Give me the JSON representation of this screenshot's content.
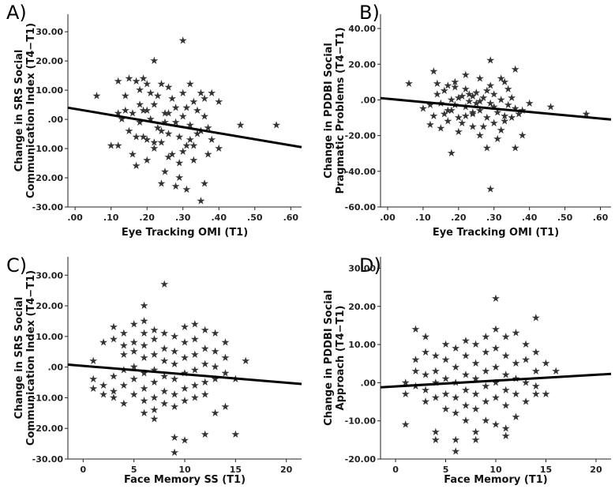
{
  "chart_data": [
    {
      "panel": "A)",
      "type": "scatter",
      "marker": "★",
      "xlabel": "Eye Tracking OMI (T1)",
      "ylabel_lines": [
        "Change in SRS Social",
        "Communication Index (T4−T1)"
      ],
      "xlim": [
        -0.02,
        0.63
      ],
      "ylim": [
        -30,
        36
      ],
      "xticks": [
        0,
        0.1,
        0.2,
        0.3,
        0.4,
        0.5,
        0.6
      ],
      "xtick_labels": [
        ".00",
        ".10",
        ".20",
        ".30",
        ".40",
        ".50",
        ".60"
      ],
      "yticks": [
        -30,
        -20,
        -10,
        0,
        10,
        20,
        30
      ],
      "ytick_labels": [
        "-30.00",
        "-20.00",
        "-10.00",
        ".00",
        "10.00",
        "20.00",
        "30.00"
      ],
      "points": [
        [
          0.06,
          8
        ],
        [
          0.12,
          13
        ],
        [
          0.15,
          14
        ],
        [
          0.17,
          13
        ],
        [
          0.18,
          10
        ],
        [
          0.2,
          12
        ],
        [
          0.22,
          20
        ],
        [
          0.24,
          12
        ],
        [
          0.26,
          11
        ],
        [
          0.3,
          27
        ],
        [
          0.32,
          12
        ],
        [
          0.36,
          7
        ],
        [
          0.38,
          9
        ],
        [
          0.4,
          6
        ],
        [
          0.46,
          -2
        ],
        [
          0.56,
          -2
        ],
        [
          0.1,
          -9
        ],
        [
          0.12,
          -9
        ],
        [
          0.13,
          0
        ],
        [
          0.14,
          3
        ],
        [
          0.15,
          -4
        ],
        [
          0.16,
          2
        ],
        [
          0.17,
          -6
        ],
        [
          0.18,
          -1
        ],
        [
          0.19,
          3
        ],
        [
          0.2,
          -7
        ],
        [
          0.21,
          0
        ],
        [
          0.22,
          5
        ],
        [
          0.23,
          -3
        ],
        [
          0.24,
          -8
        ],
        [
          0.25,
          2
        ],
        [
          0.26,
          -5
        ],
        [
          0.27,
          -12
        ],
        [
          0.28,
          4
        ],
        [
          0.29,
          -6
        ],
        [
          0.3,
          1
        ],
        [
          0.31,
          -9
        ],
        [
          0.32,
          -2
        ],
        [
          0.33,
          -14
        ],
        [
          0.34,
          3
        ],
        [
          0.35,
          -4
        ],
        [
          0.36,
          1
        ],
        [
          0.37,
          -3
        ],
        [
          0.38,
          -7
        ],
        [
          0.4,
          -10
        ],
        [
          0.17,
          -16
        ],
        [
          0.2,
          -14
        ],
        [
          0.25,
          -18
        ],
        [
          0.29,
          -20
        ],
        [
          0.24,
          -22
        ],
        [
          0.28,
          -23
        ],
        [
          0.31,
          -24
        ],
        [
          0.36,
          -22
        ],
        [
          0.35,
          -28
        ],
        [
          0.22,
          -10
        ],
        [
          0.26,
          -13
        ],
        [
          0.3,
          -11
        ],
        [
          0.19,
          -6
        ],
        [
          0.27,
          7
        ],
        [
          0.33,
          6
        ],
        [
          0.14,
          8
        ],
        [
          0.21,
          9
        ],
        [
          0.23,
          8
        ],
        [
          0.18,
          5
        ],
        [
          0.25,
          -1
        ],
        [
          0.32,
          -7
        ],
        [
          0.34,
          -5
        ],
        [
          0.16,
          -12
        ],
        [
          0.2,
          3
        ],
        [
          0.28,
          -1
        ],
        [
          0.3,
          9
        ],
        [
          0.24,
          -4
        ],
        [
          0.22,
          -8
        ],
        [
          0.26,
          2
        ],
        [
          0.31,
          4
        ],
        [
          0.35,
          9
        ],
        [
          0.12,
          2
        ],
        [
          0.19,
          14
        ],
        [
          0.29,
          -15
        ],
        [
          0.33,
          -9
        ],
        [
          0.37,
          -12
        ]
      ],
      "trend": [
        [
          -0.02,
          4
        ],
        [
          0.63,
          -9.5
        ]
      ]
    },
    {
      "panel": "B)",
      "type": "scatter",
      "marker": "★",
      "xlabel": "Eye Tracking OMI (T1)",
      "ylabel_lines": [
        "Change in PDDBI Social",
        "Pragmatic Problems (T4−T1)"
      ],
      "xlim": [
        -0.02,
        0.63
      ],
      "ylim": [
        -60,
        48
      ],
      "xticks": [
        0,
        0.1,
        0.2,
        0.3,
        0.4,
        0.5,
        0.6
      ],
      "xtick_labels": [
        ".00",
        ".10",
        ".20",
        ".30",
        ".40",
        ".50",
        ".60"
      ],
      "yticks": [
        -60,
        -40,
        -20,
        0,
        20,
        40
      ],
      "ytick_labels": [
        "-60.00",
        "-40.00",
        "-20.00",
        ".00",
        "20.00",
        "40.00"
      ],
      "points": [
        [
          0.06,
          9
        ],
        [
          0.13,
          16
        ],
        [
          0.17,
          8
        ],
        [
          0.19,
          10
        ],
        [
          0.22,
          14
        ],
        [
          0.26,
          12
        ],
        [
          0.29,
          22
        ],
        [
          0.33,
          10
        ],
        [
          0.36,
          17
        ],
        [
          0.4,
          -2
        ],
        [
          0.46,
          -4
        ],
        [
          0.56,
          -8
        ],
        [
          0.1,
          -5
        ],
        [
          0.12,
          -14
        ],
        [
          0.13,
          -9
        ],
        [
          0.14,
          3
        ],
        [
          0.15,
          -2
        ],
        [
          0.16,
          5
        ],
        [
          0.17,
          -6
        ],
        [
          0.18,
          0
        ],
        [
          0.19,
          -3
        ],
        [
          0.2,
          -10
        ],
        [
          0.21,
          2
        ],
        [
          0.22,
          -4
        ],
        [
          0.23,
          -1
        ],
        [
          0.24,
          -8
        ],
        [
          0.25,
          4
        ],
        [
          0.26,
          -6
        ],
        [
          0.27,
          1
        ],
        [
          0.28,
          -10
        ],
        [
          0.29,
          -2
        ],
        [
          0.3,
          3
        ],
        [
          0.31,
          -7
        ],
        [
          0.32,
          0
        ],
        [
          0.33,
          -12
        ],
        [
          0.34,
          -3
        ],
        [
          0.35,
          1
        ],
        [
          0.36,
          -5
        ],
        [
          0.37,
          -8
        ],
        [
          0.38,
          -20
        ],
        [
          0.18,
          -30
        ],
        [
          0.24,
          -15
        ],
        [
          0.28,
          -27
        ],
        [
          0.29,
          -50
        ],
        [
          0.36,
          -27
        ],
        [
          0.2,
          -18
        ],
        [
          0.26,
          -20
        ],
        [
          0.31,
          -22
        ],
        [
          0.22,
          6
        ],
        [
          0.24,
          -7
        ],
        [
          0.15,
          -16
        ],
        [
          0.17,
          -12
        ],
        [
          0.27,
          -15
        ],
        [
          0.33,
          -9
        ],
        [
          0.21,
          -13
        ],
        [
          0.25,
          -2
        ],
        [
          0.19,
          7
        ],
        [
          0.23,
          3
        ],
        [
          0.3,
          -4
        ],
        [
          0.34,
          6
        ],
        [
          0.16,
          -8
        ],
        [
          0.32,
          -17
        ],
        [
          0.28,
          5
        ],
        [
          0.2,
          1
        ],
        [
          0.26,
          -1
        ],
        [
          0.35,
          -10
        ],
        [
          0.14,
          9
        ],
        [
          0.18,
          -6
        ],
        [
          0.22,
          -9
        ],
        [
          0.3,
          -13
        ],
        [
          0.38,
          -6
        ],
        [
          0.12,
          -3
        ],
        [
          0.24,
          2
        ],
        [
          0.29,
          8
        ],
        [
          0.32,
          12
        ]
      ],
      "trend": [
        [
          -0.02,
          1
        ],
        [
          0.63,
          -11
        ]
      ]
    },
    {
      "panel": "C)",
      "type": "scatter",
      "marker": "★",
      "xlabel": "Face Memory SS (T1)",
      "ylabel_lines": [
        "Change in SRS Social",
        "Communication Index (T4−T1)"
      ],
      "xlim": [
        -1.5,
        21.5
      ],
      "ylim": [
        -30,
        36
      ],
      "xticks": [
        0,
        5,
        10,
        15,
        20
      ],
      "xtick_labels": [
        "0",
        "5",
        "10",
        "15",
        "20"
      ],
      "yticks": [
        -30,
        -20,
        -10,
        0,
        10,
        20,
        30
      ],
      "ytick_labels": [
        "-30.00",
        "-20.00",
        "-10.00",
        ".00",
        "10.00",
        "20.00",
        "30.00"
      ],
      "points": [
        [
          1,
          2
        ],
        [
          1,
          -4
        ],
        [
          1,
          -7
        ],
        [
          2,
          8
        ],
        [
          2,
          -6
        ],
        [
          2,
          -9
        ],
        [
          3,
          13
        ],
        [
          3,
          9
        ],
        [
          3,
          -3
        ],
        [
          3,
          -8
        ],
        [
          3,
          -10
        ],
        [
          4,
          11
        ],
        [
          4,
          7
        ],
        [
          4,
          4
        ],
        [
          4,
          -1
        ],
        [
          4,
          -6
        ],
        [
          4,
          -12
        ],
        [
          5,
          14
        ],
        [
          5,
          8
        ],
        [
          5,
          5
        ],
        [
          5,
          0
        ],
        [
          5,
          -4
        ],
        [
          5,
          -9
        ],
        [
          6,
          20
        ],
        [
          6,
          15
        ],
        [
          6,
          11
        ],
        [
          6,
          7
        ],
        [
          6,
          3
        ],
        [
          6,
          -2
        ],
        [
          6,
          -7
        ],
        [
          6,
          -11
        ],
        [
          6,
          -15
        ],
        [
          7,
          12
        ],
        [
          7,
          9
        ],
        [
          7,
          4
        ],
        [
          7,
          -1
        ],
        [
          7,
          -5
        ],
        [
          7,
          -10
        ],
        [
          7,
          -14
        ],
        [
          7,
          -17
        ],
        [
          8,
          27
        ],
        [
          8,
          11
        ],
        [
          8,
          6
        ],
        [
          8,
          2
        ],
        [
          8,
          -3
        ],
        [
          8,
          -8
        ],
        [
          8,
          -12
        ],
        [
          9,
          10
        ],
        [
          9,
          5
        ],
        [
          9,
          1
        ],
        [
          9,
          -4
        ],
        [
          9,
          -9
        ],
        [
          9,
          -13
        ],
        [
          9,
          -23
        ],
        [
          9,
          -28
        ],
        [
          10,
          13
        ],
        [
          10,
          8
        ],
        [
          10,
          3
        ],
        [
          10,
          -2
        ],
        [
          10,
          -7
        ],
        [
          10,
          -11
        ],
        [
          10,
          -24
        ],
        [
          11,
          14
        ],
        [
          11,
          9
        ],
        [
          11,
          4
        ],
        [
          11,
          -1
        ],
        [
          11,
          -6
        ],
        [
          11,
          -10
        ],
        [
          12,
          12
        ],
        [
          12,
          6
        ],
        [
          12,
          1
        ],
        [
          12,
          -5
        ],
        [
          12,
          -9
        ],
        [
          12,
          -22
        ],
        [
          13,
          11
        ],
        [
          13,
          5
        ],
        [
          13,
          0
        ],
        [
          13,
          -4
        ],
        [
          13,
          -15
        ],
        [
          14,
          8
        ],
        [
          14,
          3
        ],
        [
          14,
          -2
        ],
        [
          14,
          -13
        ],
        [
          15,
          -4
        ],
        [
          15,
          -22
        ],
        [
          16,
          2
        ]
      ],
      "trend": [
        [
          -1.5,
          0.8
        ],
        [
          21.5,
          -5.5
        ]
      ]
    },
    {
      "panel": "D)",
      "type": "scatter",
      "marker": "★",
      "xlabel": "Face Memory (T1)",
      "ylabel_lines": [
        "Change in PDDBI Social",
        "Approach (T4−T1)"
      ],
      "xlim": [
        -1.5,
        21.5
      ],
      "ylim": [
        -20,
        33
      ],
      "xticks": [
        0,
        5,
        10,
        15,
        20
      ],
      "xtick_labels": [
        "0",
        "5",
        "10",
        "15",
        "20"
      ],
      "yticks": [
        -20,
        -10,
        0,
        10,
        20,
        30
      ],
      "ytick_labels": [
        "-20.00",
        "-10.00",
        ".00",
        "10.00",
        "20.00",
        "30.00"
      ],
      "points": [
        [
          1,
          0
        ],
        [
          1,
          -3
        ],
        [
          1,
          -11
        ],
        [
          2,
          14
        ],
        [
          2,
          6
        ],
        [
          2,
          3
        ],
        [
          2,
          -1
        ],
        [
          3,
          12
        ],
        [
          3,
          8
        ],
        [
          3,
          2
        ],
        [
          3,
          -2
        ],
        [
          3,
          -5
        ],
        [
          4,
          7
        ],
        [
          4,
          3
        ],
        [
          4,
          0
        ],
        [
          4,
          -4
        ],
        [
          4,
          -13
        ],
        [
          4,
          -15
        ],
        [
          5,
          10
        ],
        [
          5,
          6
        ],
        [
          5,
          1
        ],
        [
          5,
          -3
        ],
        [
          5,
          -7
        ],
        [
          6,
          9
        ],
        [
          6,
          4
        ],
        [
          6,
          0
        ],
        [
          6,
          -4
        ],
        [
          6,
          -8
        ],
        [
          6,
          -15
        ],
        [
          6,
          -18
        ],
        [
          7,
          11
        ],
        [
          7,
          7
        ],
        [
          7,
          2
        ],
        [
          7,
          -2
        ],
        [
          7,
          -6
        ],
        [
          7,
          -10
        ],
        [
          8,
          10
        ],
        [
          8,
          5
        ],
        [
          8,
          1
        ],
        [
          8,
          -3
        ],
        [
          8,
          -7
        ],
        [
          8,
          -13
        ],
        [
          8,
          -15
        ],
        [
          9,
          12
        ],
        [
          9,
          8
        ],
        [
          9,
          3
        ],
        [
          9,
          -1
        ],
        [
          9,
          -5
        ],
        [
          9,
          -10
        ],
        [
          10,
          22
        ],
        [
          10,
          14
        ],
        [
          10,
          9
        ],
        [
          10,
          4
        ],
        [
          10,
          0
        ],
        [
          10,
          -4
        ],
        [
          10,
          -11
        ],
        [
          11,
          12
        ],
        [
          11,
          7
        ],
        [
          11,
          2
        ],
        [
          11,
          -2
        ],
        [
          11,
          -6
        ],
        [
          11,
          -12
        ],
        [
          11,
          -14
        ],
        [
          12,
          13
        ],
        [
          12,
          5
        ],
        [
          12,
          1
        ],
        [
          12,
          -3
        ],
        [
          12,
          -9
        ],
        [
          13,
          10
        ],
        [
          13,
          6
        ],
        [
          13,
          0
        ],
        [
          13,
          -5
        ],
        [
          14,
          17
        ],
        [
          14,
          8
        ],
        [
          14,
          3
        ],
        [
          14,
          -1
        ],
        [
          14,
          -3
        ],
        [
          15,
          5
        ],
        [
          15,
          -3
        ],
        [
          16,
          3
        ]
      ],
      "trend": [
        [
          -1.5,
          -1.2
        ],
        [
          21.5,
          2.3
        ]
      ]
    }
  ]
}
